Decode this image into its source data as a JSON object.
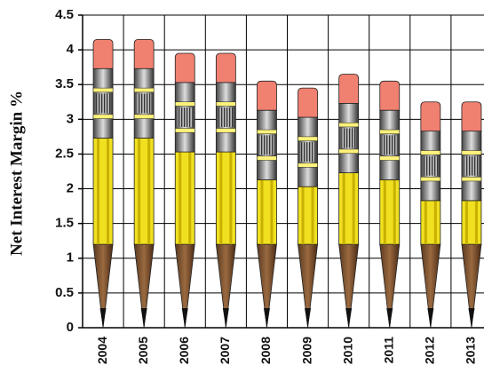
{
  "chart_data": {
    "type": "pencil-bar",
    "y_label": "Net Interest Margin %",
    "categories": [
      "2004",
      "2005",
      "2006",
      "2007",
      "2008",
      "2009",
      "2010",
      "2011",
      "2012",
      "2013"
    ],
    "values": [
      4.15,
      4.15,
      3.95,
      3.95,
      3.55,
      3.45,
      3.65,
      3.55,
      3.25,
      3.25
    ],
    "color": "#f0e020",
    "ylim": [
      0,
      4.5
    ],
    "yticks": [
      0,
      0.5,
      1,
      1.5,
      2,
      2.5,
      3,
      3.5,
      4,
      4.5
    ],
    "grid": true
  }
}
